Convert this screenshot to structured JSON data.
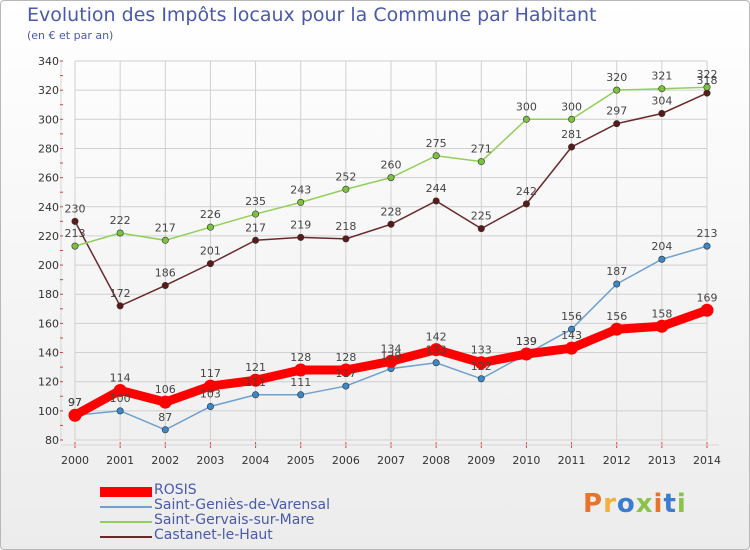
{
  "header": {
    "title": "Evolution des Impôts locaux pour la Commune par Habitant",
    "subtitle": "(en € et par an)"
  },
  "logo": {
    "text": "Proxiti",
    "colors": [
      "#e8732a",
      "#f2b23a",
      "#3a7ccf",
      "#8bc34a",
      "#e8732a",
      "#3a7ccf",
      "#8bc34a"
    ]
  },
  "chart_data": {
    "type": "line",
    "title": "Evolution des Impôts locaux pour la Commune par Habitant",
    "subtitle": "(en € et par an)",
    "xlabel": "",
    "ylabel": "",
    "ylim": [
      80,
      340
    ],
    "yticks": [
      80,
      100,
      120,
      140,
      160,
      180,
      200,
      220,
      240,
      260,
      280,
      300,
      320,
      340
    ],
    "grid": true,
    "categories": [
      "2000",
      "2001",
      "2002",
      "2003",
      "2004",
      "2005",
      "2006",
      "2007",
      "2008",
      "2009",
      "2010",
      "2011",
      "2012",
      "2013",
      "2014"
    ],
    "series": [
      {
        "name": "ROSIS",
        "color": "#ff0000",
        "emphasis": true,
        "values": [
          97,
          114,
          106,
          117,
          121,
          128,
          128,
          134,
          142,
          133,
          139,
          143,
          156,
          158,
          169
        ],
        "labels": [
          "97",
          "114",
          "106",
          "117",
          "121",
          "128",
          "128",
          "134",
          "142",
          "133",
          "139",
          "143",
          "156",
          "158",
          "169"
        ]
      },
      {
        "name": "Saint-Geniès-de-Varensal",
        "color": "#6fa1cf",
        "marker": "#3b87c7",
        "values": [
          97,
          100,
          87,
          103,
          111,
          111,
          117,
          129,
          133,
          122,
          139,
          156,
          187,
          204,
          213
        ],
        "labels": [
          "97",
          "100",
          "87",
          "103",
          "111",
          "111",
          "117",
          "129",
          "133",
          "122",
          "139",
          "156",
          "187",
          "204",
          "213"
        ]
      },
      {
        "name": "Saint-Gervais-sur-Mare",
        "color": "#92cf5a",
        "marker": "#7cc23e",
        "values": [
          213,
          222,
          217,
          226,
          235,
          243,
          252,
          260,
          275,
          271,
          300,
          300,
          320,
          321,
          322
        ],
        "labels": [
          "213",
          "222",
          "217",
          "226",
          "235",
          "243",
          "252",
          "260",
          "275",
          "271",
          "300",
          "300",
          "320",
          "321",
          "322"
        ]
      },
      {
        "name": "Castanet-le-Haut",
        "color": "#6b2a2a",
        "marker": "#5a1a1a",
        "values": [
          230,
          172,
          186,
          201,
          217,
          219,
          218,
          228,
          244,
          225,
          242,
          281,
          297,
          304,
          318
        ],
        "labels": [
          "230",
          "172",
          "186",
          "201",
          "217",
          "219",
          "218",
          "228",
          "244",
          "225",
          "242",
          "281",
          "297",
          "304",
          "318"
        ]
      }
    ]
  }
}
